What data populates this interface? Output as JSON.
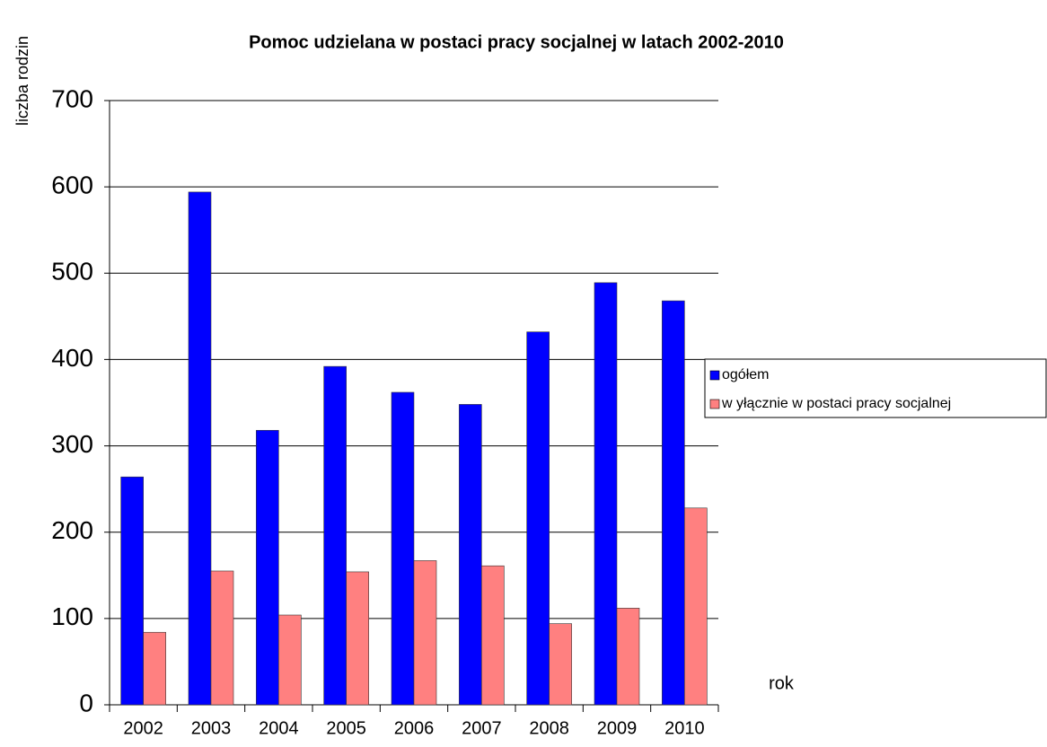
{
  "chart_data": {
    "type": "bar",
    "title": "Pomoc udzielana w postaci pracy socjalnej w latach 2002-2010",
    "y_label": "liczba rodzin",
    "x_label": "rok",
    "categories": [
      "2002",
      "2003",
      "2004",
      "2005",
      "2006",
      "2007",
      "2008",
      "2009",
      "2010"
    ],
    "series": [
      {
        "name": "ogółem",
        "color": "#0000ff",
        "values": [
          264,
          594,
          318,
          392,
          362,
          348,
          432,
          489,
          468
        ]
      },
      {
        "name": "w yłącznie w  postaci pracy socjalnej",
        "color": "#ff8080",
        "values": [
          84,
          155,
          104,
          154,
          167,
          161,
          94,
          112,
          228
        ]
      }
    ],
    "ylim": [
      0,
      700
    ],
    "yticks": [
      0,
      100,
      200,
      300,
      400,
      500,
      600,
      700
    ],
    "grid": true,
    "legend": "right"
  }
}
